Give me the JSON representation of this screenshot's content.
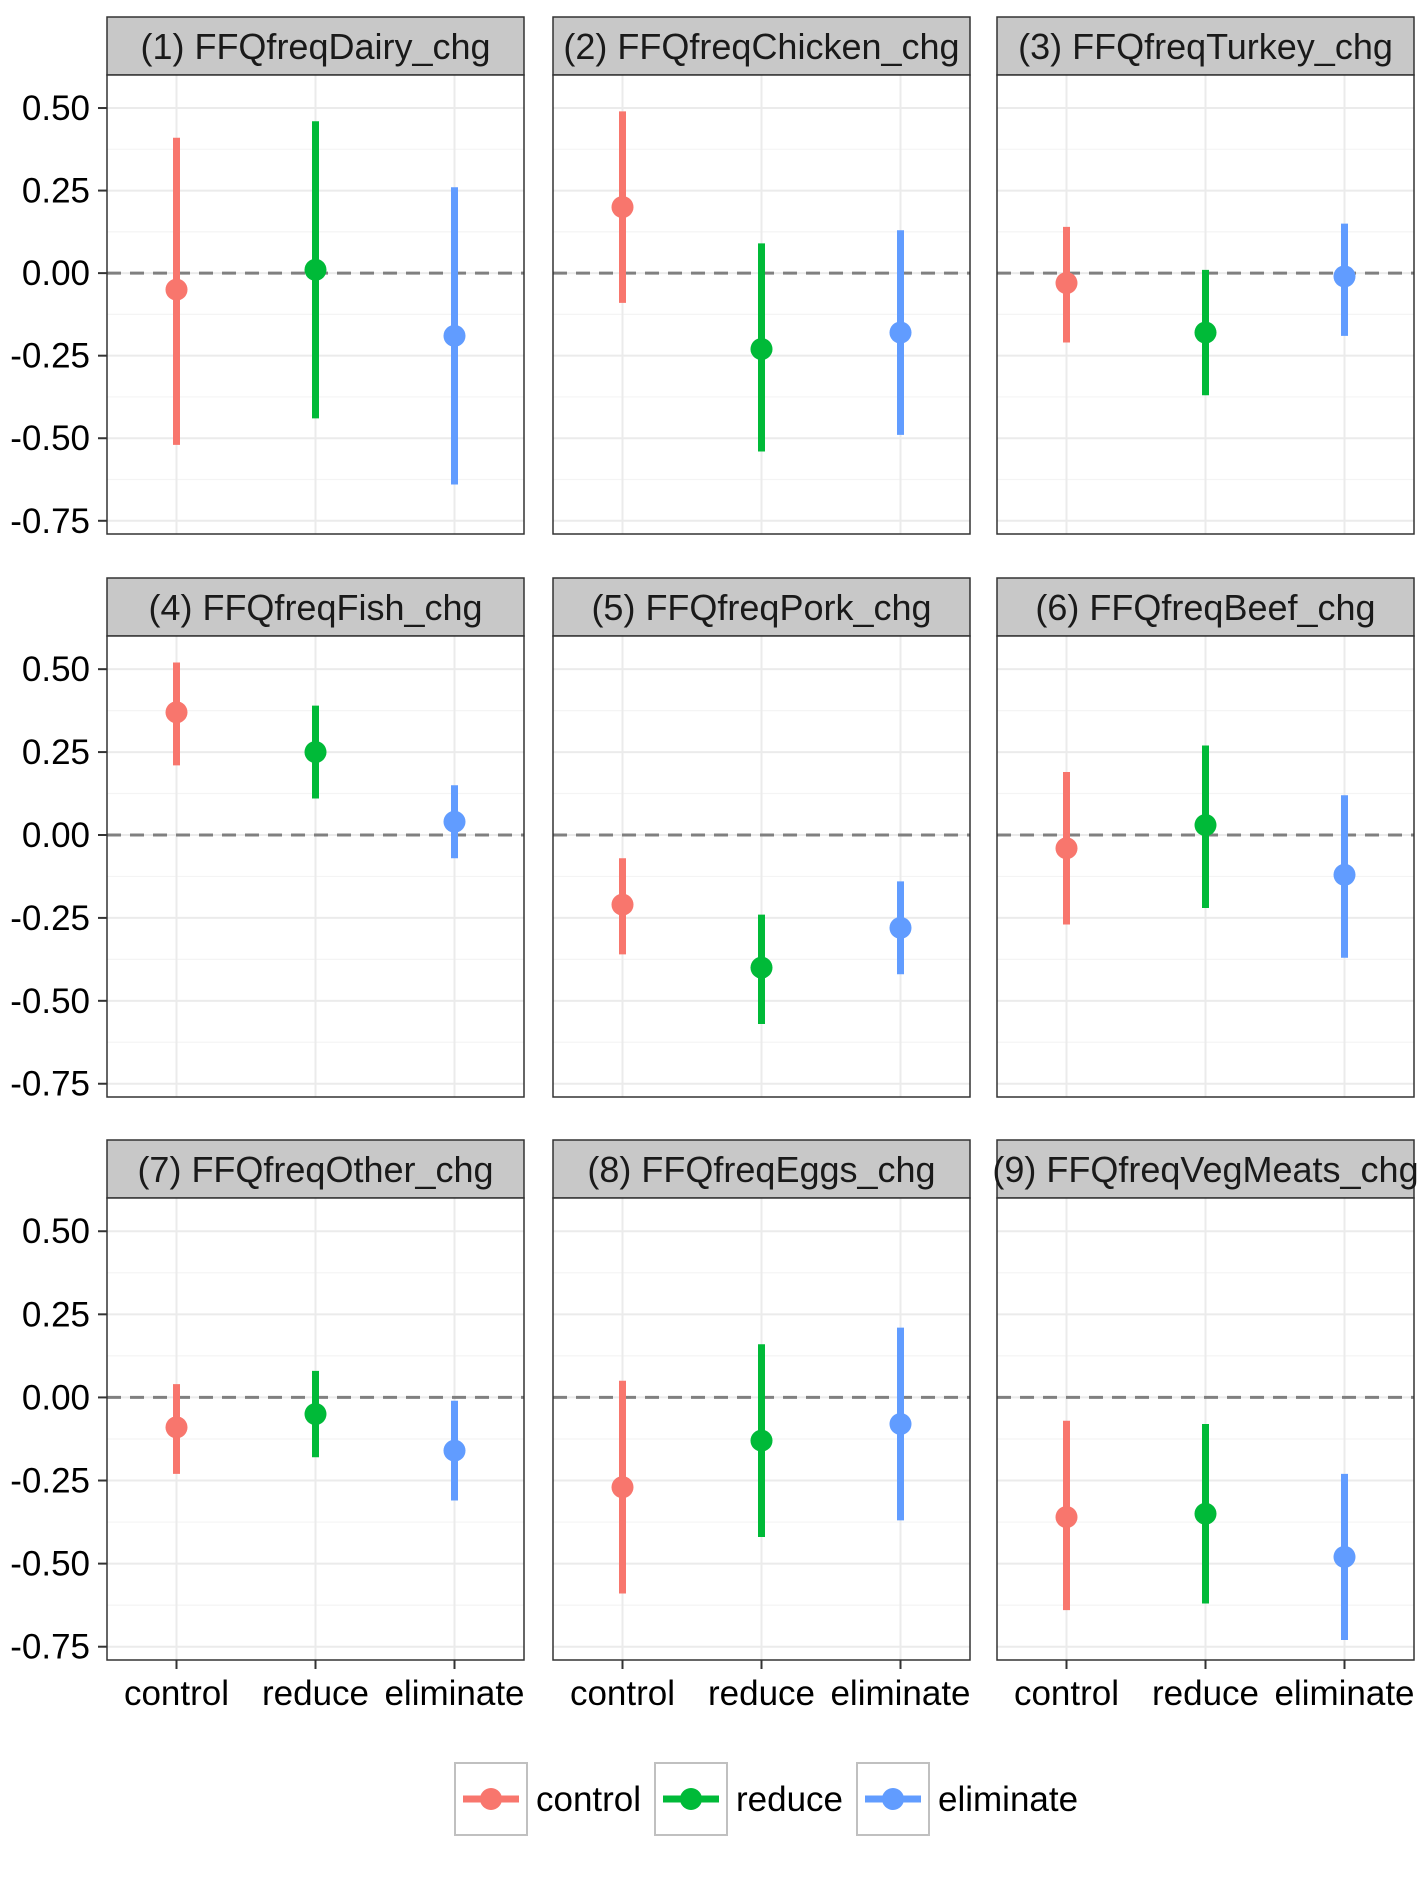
{
  "chart_data": {
    "type": "pointrange",
    "facets_layout": "3x3",
    "y_ticks": [
      "0.50",
      "0.25",
      "0.00",
      "-0.25",
      "-0.50",
      "-0.75"
    ],
    "y_tick_values": [
      0.5,
      0.25,
      0.0,
      -0.25,
      -0.5,
      -0.75
    ],
    "ylim": [
      -0.79,
      0.6
    ],
    "categories": [
      "control",
      "reduce",
      "eliminate"
    ],
    "reference_line": 0,
    "legend": {
      "position": "bottom",
      "entries": [
        "control",
        "reduce",
        "eliminate"
      ]
    },
    "colors": {
      "control": "#F8766D",
      "reduce": "#00BA38",
      "eliminate": "#619CFF",
      "strip_fill": "#C8C8C8",
      "panel_border": "#333333",
      "grid": "#EBEBEB",
      "reference_line": "#808080"
    },
    "grid": true,
    "facets": [
      {
        "title": "(1) FFQfreqDairy_chg",
        "points": [
          {
            "group": "control",
            "y": -0.05,
            "low": -0.52,
            "high": 0.41
          },
          {
            "group": "reduce",
            "y": 0.01,
            "low": -0.44,
            "high": 0.46
          },
          {
            "group": "eliminate",
            "y": -0.19,
            "low": -0.64,
            "high": 0.26
          }
        ]
      },
      {
        "title": "(2) FFQfreqChicken_chg",
        "points": [
          {
            "group": "control",
            "y": 0.2,
            "low": -0.09,
            "high": 0.49
          },
          {
            "group": "reduce",
            "y": -0.23,
            "low": -0.54,
            "high": 0.09
          },
          {
            "group": "eliminate",
            "y": -0.18,
            "low": -0.49,
            "high": 0.13
          }
        ]
      },
      {
        "title": "(3) FFQfreqTurkey_chg",
        "points": [
          {
            "group": "control",
            "y": -0.03,
            "low": -0.21,
            "high": 0.14
          },
          {
            "group": "reduce",
            "y": -0.18,
            "low": -0.37,
            "high": 0.01
          },
          {
            "group": "eliminate",
            "y": -0.01,
            "low": -0.19,
            "high": 0.15
          }
        ]
      },
      {
        "title": "(4) FFQfreqFish_chg",
        "points": [
          {
            "group": "control",
            "y": 0.37,
            "low": 0.21,
            "high": 0.52
          },
          {
            "group": "reduce",
            "y": 0.25,
            "low": 0.11,
            "high": 0.39
          },
          {
            "group": "eliminate",
            "y": 0.04,
            "low": -0.07,
            "high": 0.15
          }
        ]
      },
      {
        "title": "(5) FFQfreqPork_chg",
        "points": [
          {
            "group": "control",
            "y": -0.21,
            "low": -0.36,
            "high": -0.07
          },
          {
            "group": "reduce",
            "y": -0.4,
            "low": -0.57,
            "high": -0.24
          },
          {
            "group": "eliminate",
            "y": -0.28,
            "low": -0.42,
            "high": -0.14
          }
        ]
      },
      {
        "title": "(6) FFQfreqBeef_chg",
        "points": [
          {
            "group": "control",
            "y": -0.04,
            "low": -0.27,
            "high": 0.19
          },
          {
            "group": "reduce",
            "y": 0.03,
            "low": -0.22,
            "high": 0.27
          },
          {
            "group": "eliminate",
            "y": -0.12,
            "low": -0.37,
            "high": 0.12
          }
        ]
      },
      {
        "title": "(7) FFQfreqOther_chg",
        "points": [
          {
            "group": "control",
            "y": -0.09,
            "low": -0.23,
            "high": 0.04
          },
          {
            "group": "reduce",
            "y": -0.05,
            "low": -0.18,
            "high": 0.08
          },
          {
            "group": "eliminate",
            "y": -0.16,
            "low": -0.31,
            "high": -0.01
          }
        ]
      },
      {
        "title": "(8) FFQfreqEggs_chg",
        "points": [
          {
            "group": "control",
            "y": -0.27,
            "low": -0.59,
            "high": 0.05
          },
          {
            "group": "reduce",
            "y": -0.13,
            "low": -0.42,
            "high": 0.16
          },
          {
            "group": "eliminate",
            "y": -0.08,
            "low": -0.37,
            "high": 0.21
          }
        ]
      },
      {
        "title": "(9) FFQfreqVegMeats_chg",
        "points": [
          {
            "group": "control",
            "y": -0.36,
            "low": -0.64,
            "high": -0.07
          },
          {
            "group": "reduce",
            "y": -0.35,
            "low": -0.62,
            "high": -0.08
          },
          {
            "group": "eliminate",
            "y": -0.48,
            "low": -0.73,
            "high": -0.23
          }
        ]
      }
    ]
  }
}
